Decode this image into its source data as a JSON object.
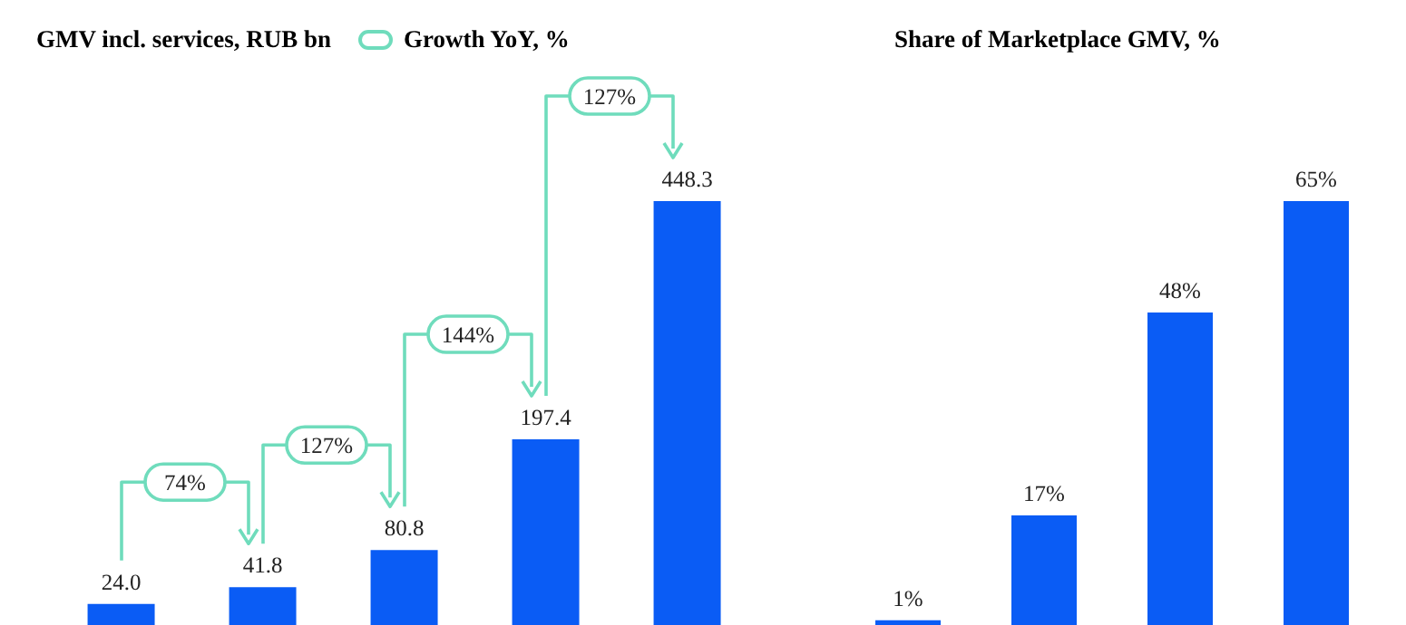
{
  "chart_data": [
    {
      "type": "bar",
      "title": "GMV incl. services, RUB bn",
      "categories": [
        null,
        null,
        null,
        null,
        null
      ],
      "values": [
        24.0,
        41.8,
        80.8,
        197.4,
        448.3
      ],
      "value_labels": [
        "24.0",
        "41.8",
        "80.8",
        "197.4",
        "448.3"
      ],
      "color": "#0a5cf5",
      "annotations": [
        "Growth YoY, %",
        "74%",
        "127%",
        "144%",
        "127%"
      ]
    },
    {
      "type": "bar",
      "title": "Share of Marketplace GMV, %",
      "categories": [
        null,
        null,
        null,
        null
      ],
      "values": [
        1,
        17,
        48,
        65
      ],
      "value_labels": [
        "1%",
        "17%",
        "48%",
        "65%"
      ],
      "color": "#0a5cf5"
    }
  ]
}
